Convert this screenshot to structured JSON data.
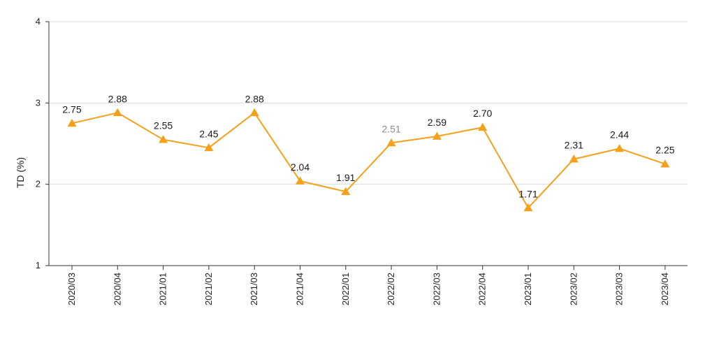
{
  "chart_data": {
    "type": "line",
    "title": "",
    "xlabel": "",
    "ylabel": "TD (%)",
    "ylim": [
      1,
      4
    ],
    "yticks": [
      1,
      2,
      3,
      4
    ],
    "grid": true,
    "legend": "none",
    "series_color": "#F5A01A",
    "categories": [
      "2020/03",
      "2020/04",
      "2021/01",
      "2021/02",
      "2021/03",
      "2021/04",
      "2022/01",
      "2022/02",
      "2022/03",
      "2022/04",
      "2023/01",
      "2023/02",
      "2023/03",
      "2023/04"
    ],
    "series": [
      {
        "name": "TD (%)",
        "values": [
          2.75,
          2.88,
          2.55,
          2.45,
          2.88,
          2.04,
          1.91,
          2.51,
          2.59,
          2.7,
          1.71,
          2.31,
          2.44,
          2.25
        ],
        "labels": [
          "2.75",
          "2.88",
          "2.55",
          "2.45",
          "2.88",
          "2.04",
          "1.91",
          "2.51",
          "2.59",
          "2.70",
          "1.71",
          "2.31",
          "2.44",
          "2.25"
        ]
      }
    ]
  }
}
